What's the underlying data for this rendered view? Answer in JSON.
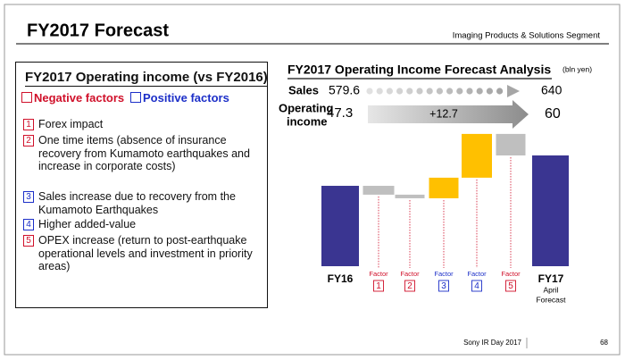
{
  "header": {
    "title": "FY2017 Forecast",
    "segment": "Imaging Products & Solutions Segment"
  },
  "left_panel": {
    "title": "FY2017 Operating income (vs FY2016)",
    "negative_label": "Negative factors",
    "positive_label": "Positive factors",
    "items": [
      {
        "number": "1",
        "kind": "negative",
        "text": "Forex impact"
      },
      {
        "number": "2",
        "kind": "negative",
        "text": "One time items (absence of insurance recovery from Kumamoto earthquakes and increase in corporate costs)"
      },
      {
        "number": "3",
        "kind": "positive",
        "text": "Sales increase due to recovery from the Kumamoto Earthquakes"
      },
      {
        "number": "4",
        "kind": "positive",
        "text": "Higher added-value"
      },
      {
        "number": "5",
        "kind": "negative",
        "text": "OPEX increase (return to post-earthquake operational levels and investment in priority areas)"
      }
    ]
  },
  "chart_data": {
    "type": "waterfall",
    "title": "FY2017 Operating Income Forecast Analysis",
    "unit": "(bln yen)",
    "sales": {
      "label": "Sales",
      "from": 579.6,
      "to": 640
    },
    "operating": {
      "label": [
        "Operating",
        "income"
      ],
      "change": {
        "value": 12.7,
        "label": "+12.7"
      }
    },
    "start": {
      "label": "FY16",
      "value": 47.3
    },
    "factors": [
      {
        "label": "Factor",
        "number": "1",
        "kind": "negative",
        "value": -3.7
      },
      {
        "label": "Factor",
        "number": "2",
        "kind": "negative",
        "value": -1.5
      },
      {
        "label": "Factor",
        "number": "3",
        "kind": "positive",
        "value": 8.6
      },
      {
        "label": "Factor",
        "number": "4",
        "kind": "positive",
        "value": 18.3
      },
      {
        "label": "Factor",
        "number": "5",
        "kind": "negative",
        "value": -9.0
      }
    ],
    "end": {
      "label": "FY17",
      "sublabel": [
        "April",
        "Forecast"
      ],
      "value": 60
    },
    "colors": {
      "total": "#3a3591",
      "negative": "#bfbfbf",
      "positive": "#ffc000"
    },
    "ylim": [
      13.7,
      72.7
    ]
  },
  "footer": {
    "event": "Sony IR Day 2017",
    "page": "68"
  }
}
